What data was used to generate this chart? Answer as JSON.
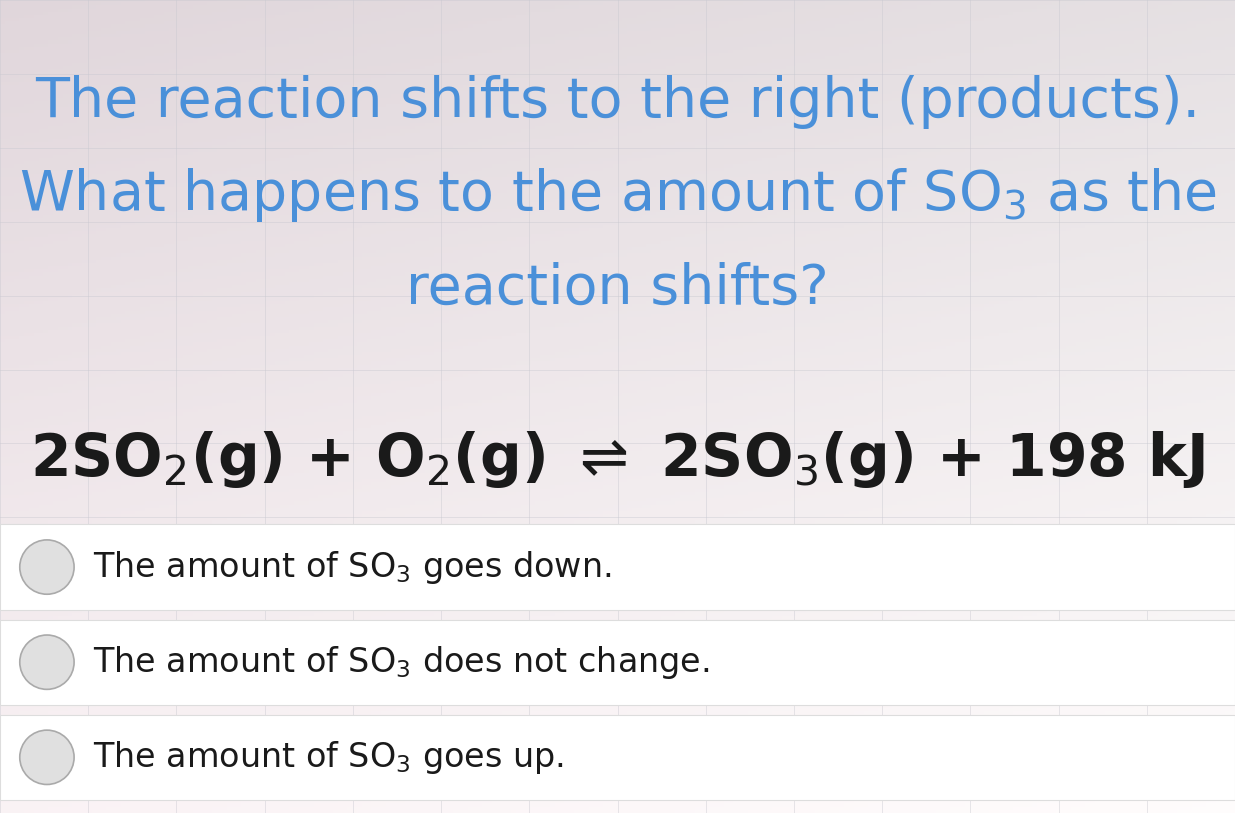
{
  "title_line1": "The reaction shifts to the right (products).",
  "title_line2": "What happens to the amount of SO$_3$ as the",
  "title_line3": "reaction shifts?",
  "title_color": "#4a90d9",
  "title_fontsize": 40,
  "equation_fontsize": 42,
  "equation_color": "#1a1a1a",
  "option_fontsize": 24,
  "option_color": "#1a1a1a",
  "option_box_color": "#ffffff",
  "option_box_edge_color": "#dddddd",
  "radio_fill": "#e0e0e0",
  "radio_edge": "#aaaaaa",
  "grid_color": "#c8c8d0",
  "figsize": [
    12.35,
    8.13
  ],
  "dpi": 100
}
